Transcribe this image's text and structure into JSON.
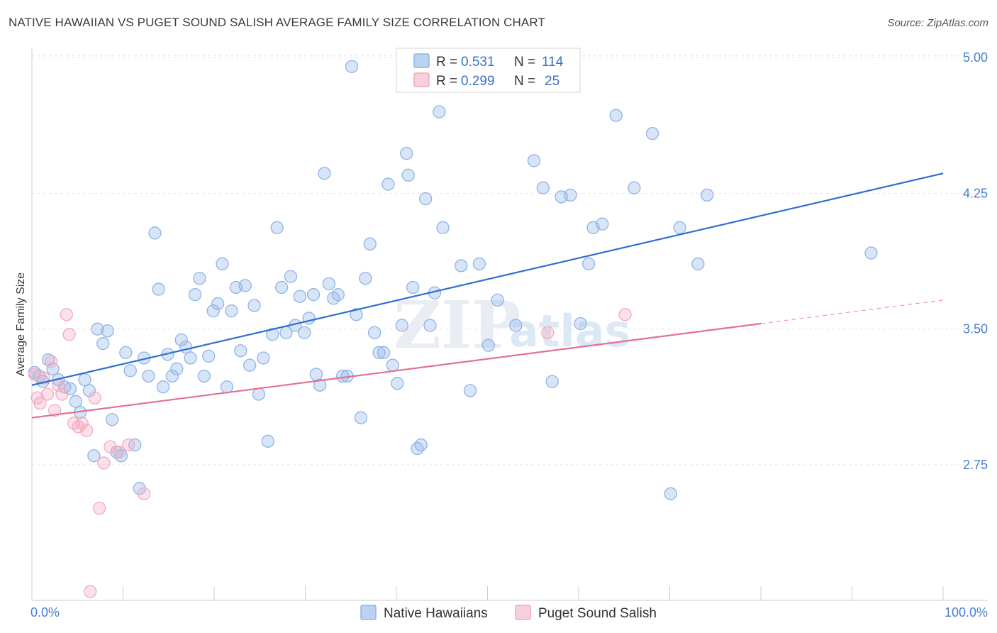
{
  "title": "NATIVE HAWAIIAN VS PUGET SOUND SALISH AVERAGE FAMILY SIZE CORRELATION CHART",
  "source": "Source: ZipAtlas.com",
  "watermark": [
    "ZIP",
    "atlas"
  ],
  "chart_data": {
    "type": "scatter",
    "title": "NATIVE HAWAIIAN VS PUGET SOUND SALISH AVERAGE FAMILY SIZE CORRELATION CHART",
    "xlabel": "",
    "ylabel": "Average Family Size",
    "xlim": [
      0,
      100
    ],
    "ylim": [
      2.0,
      5.1
    ],
    "x_tick_labels": [
      "0.0%",
      "100.0%"
    ],
    "y_ticks": [
      2.75,
      3.5,
      4.25,
      5.0
    ],
    "y_tick_labels": [
      "2.75",
      "3.50",
      "4.25",
      "5.00"
    ],
    "grid": true,
    "legend_position": "top-center",
    "stats_legend": [
      {
        "r_label": "R =",
        "r_value": "0.531",
        "n_label": "N =",
        "n_value": "114"
      },
      {
        "r_label": "R =",
        "r_value": "0.299",
        "n_label": "N =",
        "n_value": "25"
      }
    ],
    "series": [
      {
        "name": "Native Hawaiians",
        "color": "#8fb4e8",
        "line_color": "#2e6fcf",
        "trend": {
          "x": [
            0,
            100
          ],
          "y": [
            3.19,
            4.36
          ],
          "dashed_from": null
        },
        "points": [
          [
            0.3,
            3.26
          ],
          [
            0.8,
            3.24
          ],
          [
            1.2,
            3.21
          ],
          [
            1.8,
            3.33
          ],
          [
            2.3,
            3.28
          ],
          [
            2.9,
            3.22
          ],
          [
            3.6,
            3.18
          ],
          [
            4.2,
            3.17
          ],
          [
            4.8,
            3.1
          ],
          [
            5.3,
            3.04
          ],
          [
            5.8,
            3.22
          ],
          [
            6.3,
            3.16
          ],
          [
            6.8,
            2.8
          ],
          [
            7.2,
            3.5
          ],
          [
            7.8,
            3.42
          ],
          [
            8.3,
            3.49
          ],
          [
            8.8,
            3.0
          ],
          [
            9.3,
            2.82
          ],
          [
            9.8,
            2.8
          ],
          [
            10.3,
            3.37
          ],
          [
            10.8,
            3.27
          ],
          [
            11.3,
            2.86
          ],
          [
            11.8,
            2.62
          ],
          [
            12.3,
            3.34
          ],
          [
            12.8,
            3.24
          ],
          [
            13.5,
            4.03
          ],
          [
            13.9,
            3.72
          ],
          [
            14.4,
            3.18
          ],
          [
            14.9,
            3.36
          ],
          [
            15.4,
            3.24
          ],
          [
            15.9,
            3.28
          ],
          [
            16.4,
            3.44
          ],
          [
            16.9,
            3.4
          ],
          [
            17.4,
            3.34
          ],
          [
            17.9,
            3.69
          ],
          [
            18.4,
            3.78
          ],
          [
            18.9,
            3.24
          ],
          [
            19.4,
            3.35
          ],
          [
            19.9,
            3.6
          ],
          [
            20.4,
            3.64
          ],
          [
            20.9,
            3.86
          ],
          [
            21.4,
            3.18
          ],
          [
            21.9,
            3.6
          ],
          [
            22.4,
            3.73
          ],
          [
            22.9,
            3.38
          ],
          [
            23.4,
            3.74
          ],
          [
            23.9,
            3.3
          ],
          [
            24.4,
            3.63
          ],
          [
            24.9,
            3.14
          ],
          [
            25.4,
            3.34
          ],
          [
            25.9,
            2.88
          ],
          [
            26.4,
            3.47
          ],
          [
            26.9,
            4.06
          ],
          [
            27.4,
            3.73
          ],
          [
            27.9,
            3.48
          ],
          [
            28.4,
            3.79
          ],
          [
            28.9,
            3.52
          ],
          [
            29.4,
            3.68
          ],
          [
            29.9,
            3.48
          ],
          [
            30.4,
            3.56
          ],
          [
            30.9,
            3.69
          ],
          [
            31.2,
            3.25
          ],
          [
            31.6,
            3.19
          ],
          [
            32.1,
            4.36
          ],
          [
            32.6,
            3.75
          ],
          [
            33.1,
            3.67
          ],
          [
            33.6,
            3.69
          ],
          [
            34.1,
            3.24
          ],
          [
            34.6,
            3.24
          ],
          [
            35.1,
            4.95
          ],
          [
            35.6,
            3.58
          ],
          [
            36.1,
            3.01
          ],
          [
            36.6,
            3.78
          ],
          [
            37.1,
            3.97
          ],
          [
            37.6,
            3.48
          ],
          [
            38.1,
            3.37
          ],
          [
            38.6,
            3.37
          ],
          [
            39.1,
            4.3
          ],
          [
            39.6,
            3.3
          ],
          [
            40.1,
            3.2
          ],
          [
            40.6,
            3.52
          ],
          [
            41.1,
            4.47
          ],
          [
            41.3,
            4.35
          ],
          [
            41.8,
            3.73
          ],
          [
            42.3,
            2.84
          ],
          [
            42.7,
            2.86
          ],
          [
            43.2,
            4.22
          ],
          [
            43.7,
            3.52
          ],
          [
            44.2,
            3.7
          ],
          [
            44.7,
            4.7
          ],
          [
            45.1,
            4.06
          ],
          [
            47.1,
            3.85
          ],
          [
            48.1,
            3.16
          ],
          [
            49.1,
            3.86
          ],
          [
            50.1,
            3.41
          ],
          [
            51.1,
            3.66
          ],
          [
            53.1,
            3.52
          ],
          [
            55.1,
            4.43
          ],
          [
            56.1,
            4.28
          ],
          [
            57.1,
            3.21
          ],
          [
            58.1,
            4.23
          ],
          [
            59.1,
            4.24
          ],
          [
            60.2,
            3.53
          ],
          [
            61.1,
            3.86
          ],
          [
            61.6,
            4.06
          ],
          [
            62.6,
            4.08
          ],
          [
            64.1,
            4.68
          ],
          [
            66.1,
            4.28
          ],
          [
            68.1,
            4.58
          ],
          [
            70.1,
            2.59
          ],
          [
            71.1,
            4.06
          ],
          [
            73.1,
            3.86
          ],
          [
            74.1,
            4.24
          ],
          [
            92.1,
            3.92
          ]
        ]
      },
      {
        "name": "Puget Sound Salish",
        "color": "#f4a9c1",
        "line_color": "#e36f98",
        "trend": {
          "x": [
            0,
            100
          ],
          "y": [
            3.01,
            3.66
          ],
          "dashed_from": 80
        },
        "points": [
          [
            0.3,
            3.25
          ],
          [
            0.6,
            3.12
          ],
          [
            0.9,
            3.09
          ],
          [
            1.3,
            3.23
          ],
          [
            1.7,
            3.14
          ],
          [
            2.1,
            3.32
          ],
          [
            2.5,
            3.05
          ],
          [
            2.9,
            3.19
          ],
          [
            3.3,
            3.14
          ],
          [
            3.8,
            3.58
          ],
          [
            4.1,
            3.47
          ],
          [
            4.6,
            2.98
          ],
          [
            5.1,
            2.96
          ],
          [
            5.5,
            2.98
          ],
          [
            6.0,
            2.94
          ],
          [
            6.9,
            3.12
          ],
          [
            7.4,
            2.51
          ],
          [
            7.9,
            2.76
          ],
          [
            8.6,
            2.85
          ],
          [
            9.6,
            2.82
          ],
          [
            10.6,
            2.86
          ],
          [
            12.3,
            2.59
          ],
          [
            6.4,
            2.05
          ],
          [
            56.6,
            3.48
          ],
          [
            65.1,
            3.58
          ]
        ]
      }
    ]
  }
}
